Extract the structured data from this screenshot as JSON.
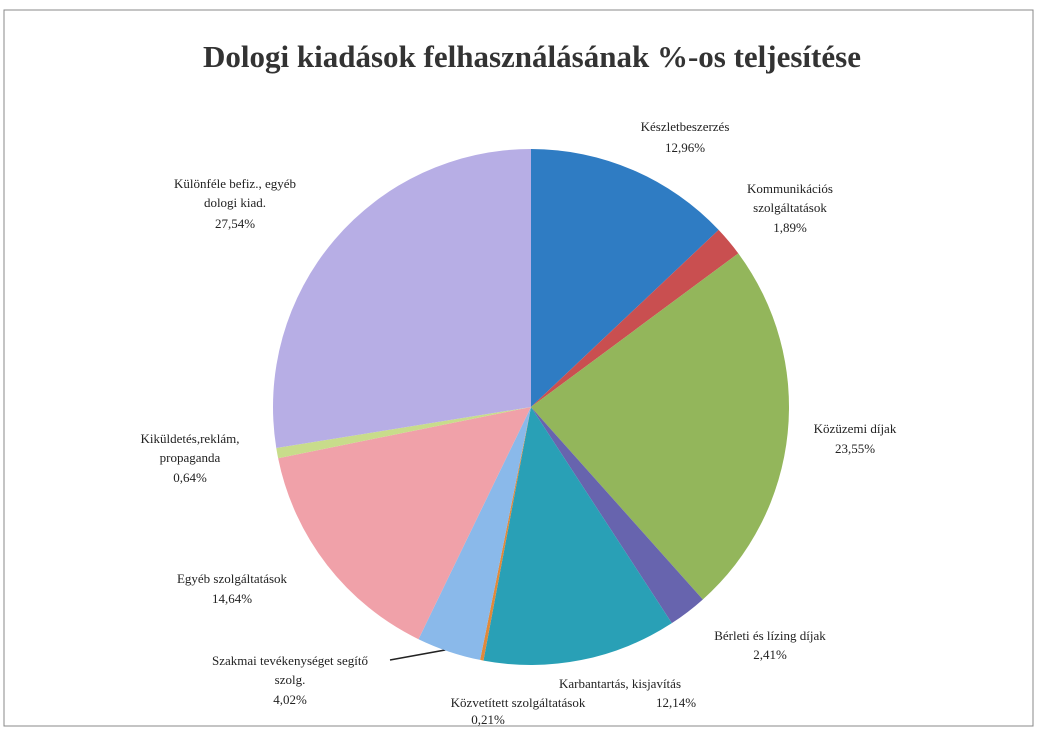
{
  "chart_data": {
    "type": "pie",
    "title": "Dologi kiadások felhasználásának %-os teljesítése",
    "categories": [
      [
        "Készletbeszerzés"
      ],
      [
        "Kommunikációs",
        "szolgáltatások"
      ],
      [
        "Közüzemi díjak"
      ],
      [
        "Bérleti és lízing díjak"
      ],
      [
        "Karbantartás, kisjavítás"
      ],
      [
        "Közvetített szolgáltatások"
      ],
      [
        "Szakmai tevékenységet segítő",
        "szolg."
      ],
      [
        "Egyéb szolgáltatások"
      ],
      [
        "Kiküldetés,reklám,",
        "propaganda"
      ],
      [
        "Különféle befiz., egyéb",
        "dologi kiad."
      ]
    ],
    "values": [
      12.96,
      1.89,
      23.55,
      2.41,
      12.14,
      0.21,
      4.02,
      14.64,
      0.64,
      27.54
    ],
    "value_labels": [
      "12,96%",
      "1,89%",
      "23,55%",
      "2,41%",
      "12,14%",
      "0,21%",
      "4,02%",
      "14,64%",
      "0,64%",
      "27,54%"
    ],
    "colors": [
      "#2f7cc3",
      "#c94f50",
      "#93b65b",
      "#6764ae",
      "#29a0b6",
      "#e0893b",
      "#8ab9ea",
      "#f0a1a9",
      "#c8dc8b",
      "#b7aee5"
    ]
  }
}
